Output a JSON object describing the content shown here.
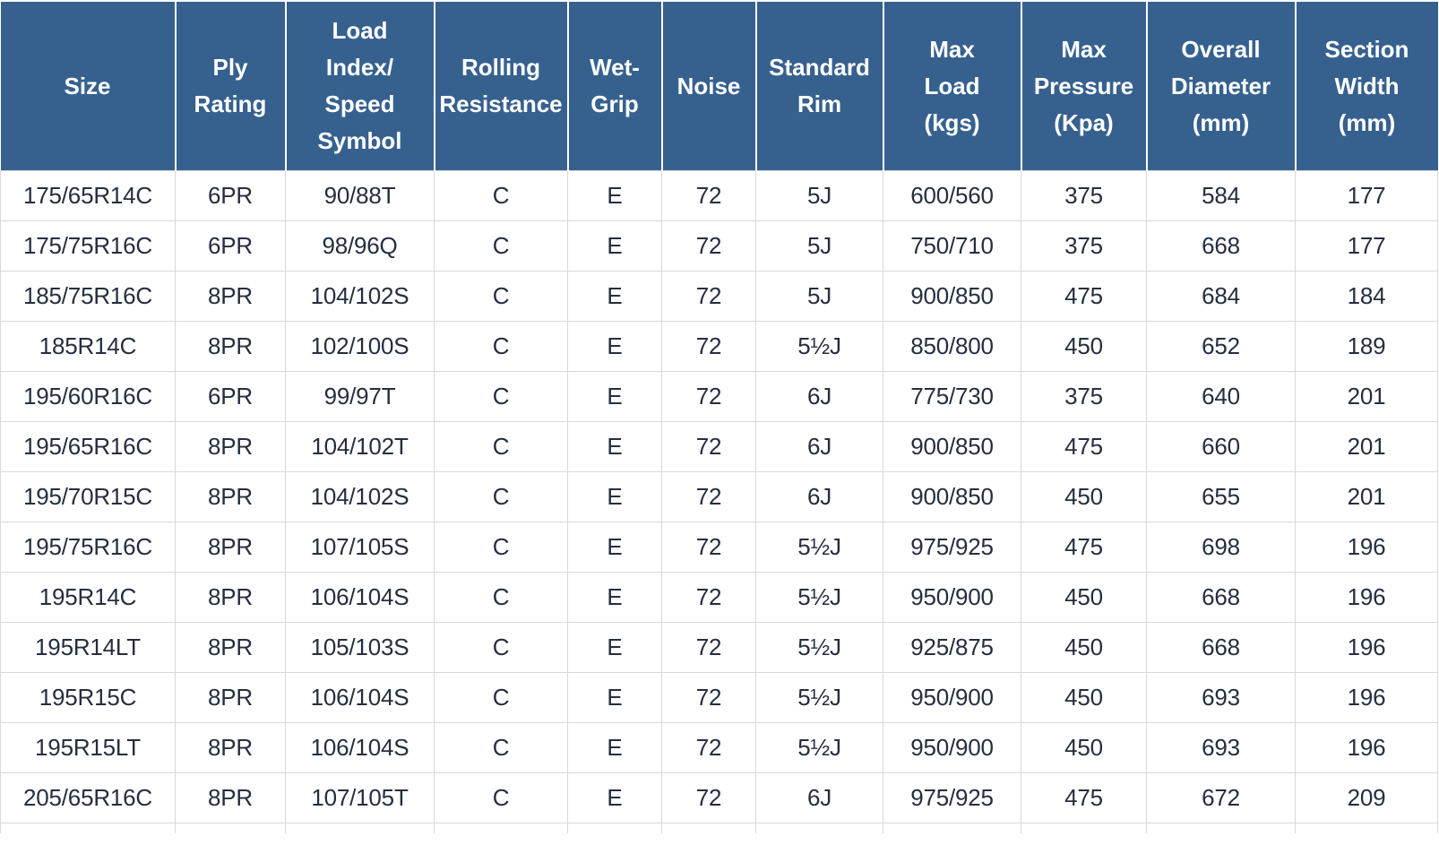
{
  "chart_data": {
    "type": "table",
    "columns": [
      "Size",
      "Ply Rating",
      "Load Index/Speed Symbol",
      "Rolling Resistance",
      "Wet-Grip",
      "Noise",
      "Standard Rim",
      "Max Load (kgs)",
      "Max Pressure (Kpa)",
      "Overall Diameter (mm)",
      "Section Width (mm)"
    ],
    "rows": [
      [
        "175/65R14C",
        "6PR",
        "90/88T",
        "C",
        "E",
        "72",
        "5J",
        "600/560",
        "375",
        "584",
        "177"
      ],
      [
        "175/75R16C",
        "6PR",
        "98/96Q",
        "C",
        "E",
        "72",
        "5J",
        "750/710",
        "375",
        "668",
        "177"
      ],
      [
        "185/75R16C",
        "8PR",
        "104/102S",
        "C",
        "E",
        "72",
        "5J",
        "900/850",
        "475",
        "684",
        "184"
      ],
      [
        "185R14C",
        "8PR",
        "102/100S",
        "C",
        "E",
        "72",
        "5½J",
        "850/800",
        "450",
        "652",
        "189"
      ],
      [
        "195/60R16C",
        "6PR",
        "99/97T",
        "C",
        "E",
        "72",
        "6J",
        "775/730",
        "375",
        "640",
        "201"
      ],
      [
        "195/65R16C",
        "8PR",
        "104/102T",
        "C",
        "E",
        "72",
        "6J",
        "900/850",
        "475",
        "660",
        "201"
      ],
      [
        "195/70R15C",
        "8PR",
        "104/102S",
        "C",
        "E",
        "72",
        "6J",
        "900/850",
        "450",
        "655",
        "201"
      ],
      [
        "195/75R16C",
        "8PR",
        "107/105S",
        "C",
        "E",
        "72",
        "5½J",
        "975/925",
        "475",
        "698",
        "196"
      ],
      [
        "195R14C",
        "8PR",
        "106/104S",
        "C",
        "E",
        "72",
        "5½J",
        "950/900",
        "450",
        "668",
        "196"
      ],
      [
        "195R14LT",
        "8PR",
        "105/103S",
        "C",
        "E",
        "72",
        "5½J",
        "925/875",
        "450",
        "668",
        "196"
      ],
      [
        "195R15C",
        "8PR",
        "106/104S",
        "C",
        "E",
        "72",
        "5½J",
        "950/900",
        "450",
        "693",
        "196"
      ],
      [
        "195R15LT",
        "8PR",
        "106/104S",
        "C",
        "E",
        "72",
        "5½J",
        "950/900",
        "450",
        "693",
        "196"
      ],
      [
        "205/65R16C",
        "8PR",
        "107/105T",
        "C",
        "E",
        "72",
        "6J",
        "975/925",
        "475",
        "672",
        "209"
      ]
    ],
    "layout_hints": {
      "header_rows": 1,
      "grid": "on",
      "all_cells_centered": true,
      "partial_row_visible_at_bottom": true
    }
  },
  "header": {
    "display_labels": [
      "Size",
      "Ply\nRating",
      "Load\nIndex/\nSpeed\nSymbol",
      "Rolling\nResistance",
      "Wet-\nGrip",
      "Noise",
      "Standard\nRim",
      "Max\nLoad\n(kgs)",
      "Max\nPressure\n(Kpa)",
      "Overall\nDiameter\n(mm)",
      "Section\nWidth\n(mm)"
    ]
  },
  "colors": {
    "header_bg": "#36618F",
    "header_text": "#FFFFFF",
    "body_text": "#252E3E",
    "grid_border": "#D9D9D9"
  }
}
